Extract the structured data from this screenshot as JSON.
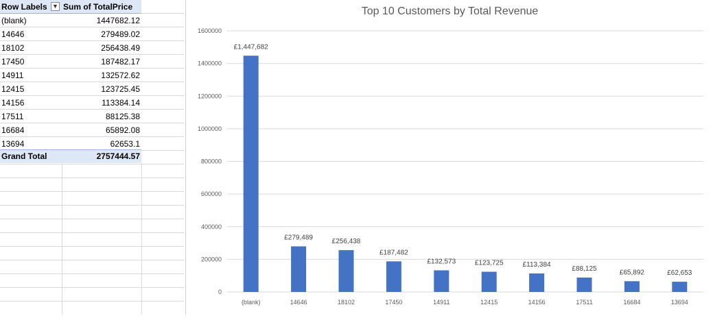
{
  "pivot": {
    "header": {
      "row_labels": "Row Labels",
      "filter_icon": "filter-sort-icon",
      "sum_label": "Sum of TotalPrice"
    },
    "rows": [
      {
        "label": "(blank)",
        "value": "1447682.12"
      },
      {
        "label": "14646",
        "value": "279489.02"
      },
      {
        "label": "18102",
        "value": "256438.49"
      },
      {
        "label": "17450",
        "value": "187482.17"
      },
      {
        "label": "14911",
        "value": "132572.62"
      },
      {
        "label": "12415",
        "value": "123725.45"
      },
      {
        "label": "14156",
        "value": "113384.14"
      },
      {
        "label": "17511",
        "value": "88125.38"
      },
      {
        "label": "16684",
        "value": "65892.08"
      },
      {
        "label": "13694",
        "value": "62653.1"
      }
    ],
    "total": {
      "label": "Grand Total",
      "value": "2757444.57"
    }
  },
  "chart_data": {
    "type": "bar",
    "title": "Top 10 Customers by Total Revenue",
    "xlabel": "",
    "ylabel": "",
    "categories": [
      "(blank)",
      "14646",
      "18102",
      "17450",
      "14911",
      "12415",
      "14156",
      "17511",
      "16684",
      "13694"
    ],
    "values": [
      1447682.12,
      279489.02,
      256438.49,
      187482.17,
      132572.62,
      123725.45,
      113384.14,
      88125.38,
      65892.08,
      62653.1
    ],
    "data_labels": [
      "£1,447,682",
      "£279,489",
      "£256,438",
      "£187,482",
      "£132,573",
      "£123,725",
      "£113,384",
      "£88,125",
      "£65,892",
      "£62,653"
    ],
    "ylim": [
      0,
      1600000
    ],
    "yticks": [
      "0",
      "200000",
      "400000",
      "600000",
      "800000",
      "1000000",
      "1200000",
      "1400000",
      "1600000"
    ],
    "grid": true,
    "legend": "none",
    "colors": {
      "bar": "#4472c4",
      "grid": "#d9d9d9",
      "axis_text": "#595959"
    }
  }
}
